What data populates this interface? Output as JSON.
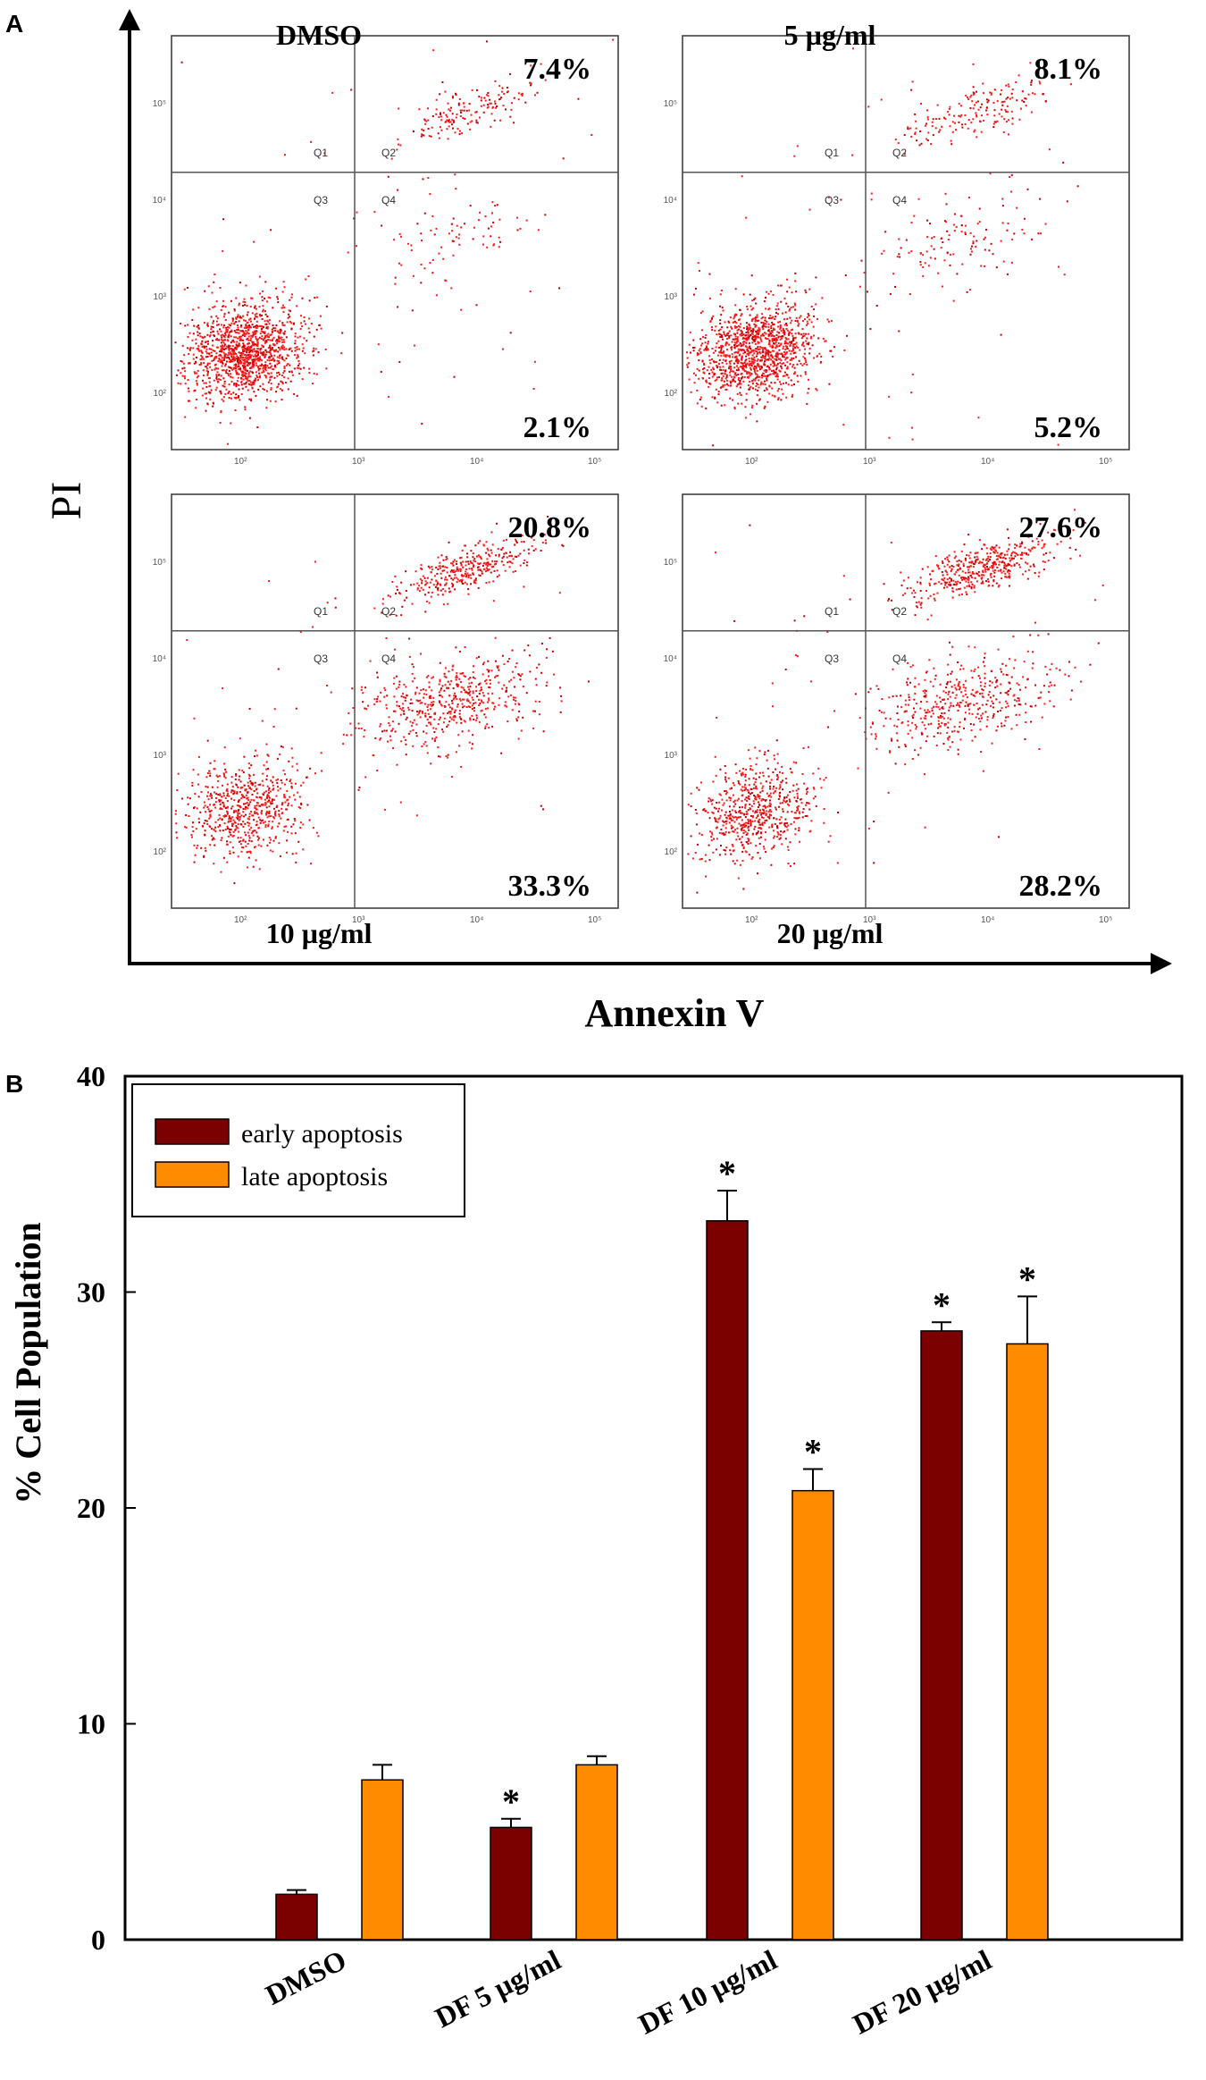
{
  "colors": {
    "early": "#7b0000",
    "late": "#ff8c00",
    "dot": "#ff1a1a",
    "dot_dark": "#c80000",
    "axis": "#000000",
    "gate": "#555555"
  },
  "panel_a": {
    "label": "A",
    "x_axis_label": "Annexin V",
    "y_axis_label": "PI",
    "quadrant_labels": [
      "Q1",
      "Q2",
      "Q3",
      "Q4"
    ],
    "tick_labels": [
      "10²",
      "10³",
      "10⁴",
      "10⁵"
    ],
    "plots": [
      {
        "title": "DMSO",
        "late_pct": "7.4%",
        "early_pct": "2.1%",
        "early": 2.1,
        "late": 7.4
      },
      {
        "title": "5 µg/ml",
        "late_pct": "8.1%",
        "early_pct": "5.2%",
        "early": 5.2,
        "late": 8.1
      },
      {
        "title": "10 µg/ml",
        "late_pct": "20.8%",
        "early_pct": "33.3%",
        "early": 33.3,
        "late": 20.8
      },
      {
        "title": "20 µg/ml",
        "late_pct": "27.6%",
        "early_pct": "28.2%",
        "early": 28.2,
        "late": 27.6
      }
    ]
  },
  "panel_b": {
    "label": "B",
    "star": "*"
  },
  "chart_data": {
    "type": "bar",
    "title": "",
    "xlabel": "",
    "ylabel": "% Cell Population",
    "ylim": [
      0,
      40
    ],
    "yticks": [
      0,
      10,
      20,
      30,
      40
    ],
    "categories": [
      "DMSO",
      "DF 5 µg/ml",
      "DF 10 µg/ml",
      "DF 20 µg/ml"
    ],
    "legend_position": "top-left",
    "series": [
      {
        "name": "early apoptosis",
        "values": [
          2.1,
          5.2,
          33.3,
          28.2
        ],
        "errors": [
          0.2,
          0.4,
          1.4,
          0.4
        ],
        "significant": [
          false,
          true,
          true,
          true
        ]
      },
      {
        "name": "late apoptosis",
        "values": [
          7.4,
          8.1,
          20.8,
          27.6
        ],
        "errors": [
          0.7,
          0.4,
          1.0,
          2.2
        ],
        "significant": [
          false,
          false,
          true,
          true
        ]
      }
    ]
  }
}
